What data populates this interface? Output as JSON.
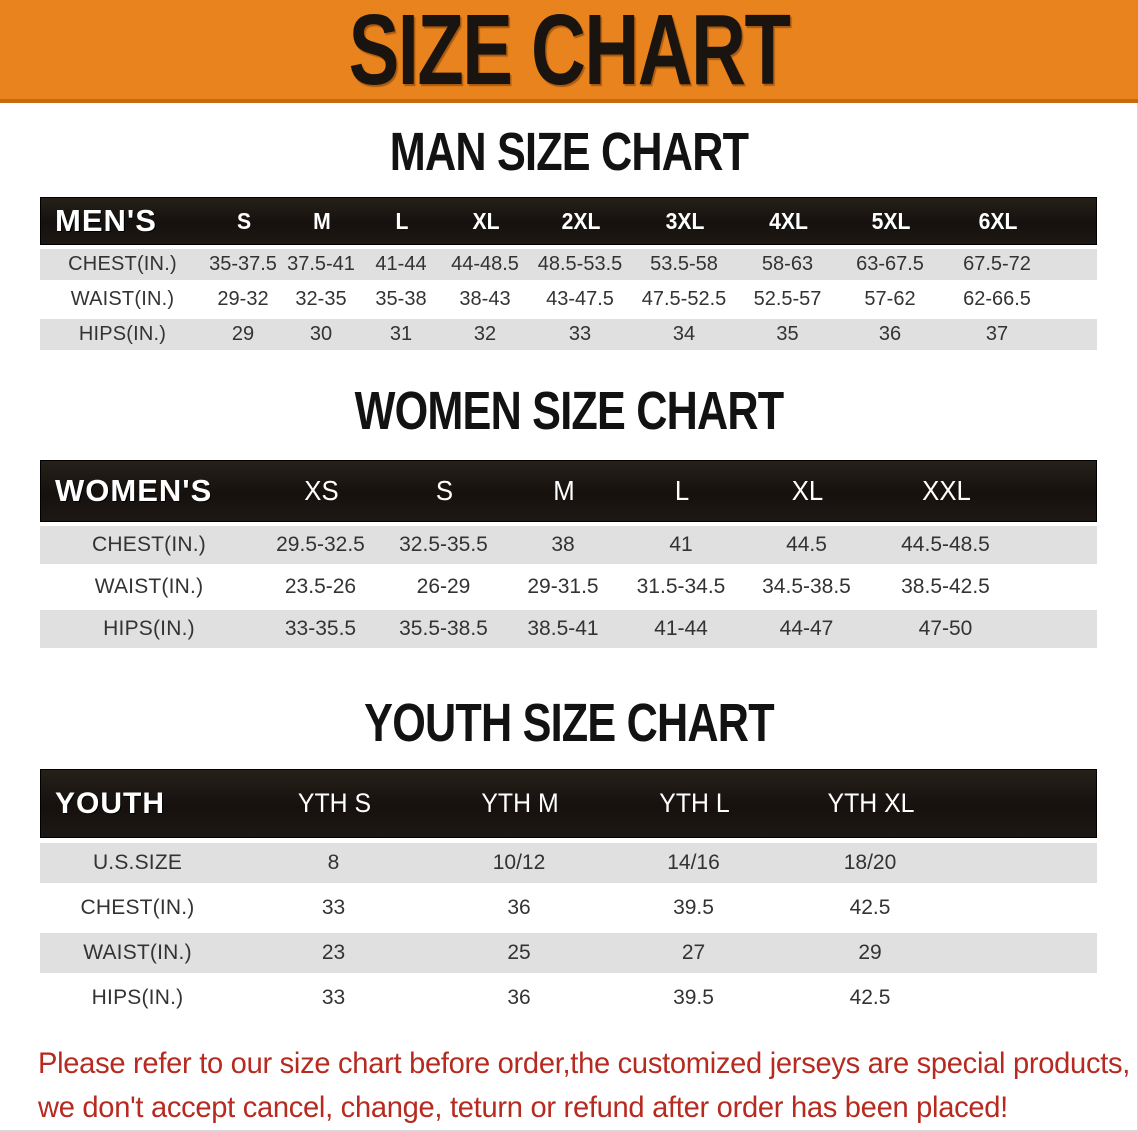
{
  "banner": {
    "title": "SIZE CHART",
    "background_color": "#E8831E",
    "edge_color": "#C9690F"
  },
  "colors": {
    "table_header_bg": "#1A1512",
    "table_header_text": "#FFFFFF",
    "row_stripe": "#DFE0DF",
    "row_text": "#333333",
    "notice_red": "#B62A20"
  },
  "sections": [
    {
      "heading": "MAN SIZE CHART",
      "table": {
        "key": "men",
        "label": "MEN'S",
        "sizes": [
          "S",
          "M",
          "L",
          "XL",
          "2XL",
          "3XL",
          "4XL",
          "5XL",
          "6XL"
        ],
        "rows": [
          {
            "label": "CHEST(IN.)",
            "values": [
              "35-37.5",
              "37.5-41",
              "41-44",
              "44-48.5",
              "48.5-53.5",
              "53.5-58",
              "58-63",
              "63-67.5",
              "67.5-72"
            ]
          },
          {
            "label": "WAIST(IN.)",
            "values": [
              "29-32",
              "32-35",
              "35-38",
              "38-43",
              "43-47.5",
              "47.5-52.5",
              "52.5-57",
              "57-62",
              "62-66.5"
            ]
          },
          {
            "label": "HIPS(IN.)",
            "values": [
              "29",
              "30",
              "31",
              "32",
              "33",
              "34",
              "35",
              "36",
              "37"
            ]
          }
        ]
      }
    },
    {
      "heading": "WOMEN SIZE CHART",
      "table": {
        "key": "women",
        "label": "WOMEN'S",
        "sizes": [
          "XS",
          "S",
          "M",
          "L",
          "XL",
          "XXL"
        ],
        "rows": [
          {
            "label": "CHEST(IN.)",
            "values": [
              "29.5-32.5",
              "32.5-35.5",
              "38",
              "41",
              "44.5",
              "44.5-48.5"
            ]
          },
          {
            "label": "WAIST(IN.)",
            "values": [
              "23.5-26",
              "26-29",
              "29-31.5",
              "31.5-34.5",
              "34.5-38.5",
              "38.5-42.5"
            ]
          },
          {
            "label": "HIPS(IN.)",
            "values": [
              "33-35.5",
              "35.5-38.5",
              "38.5-41",
              "41-44",
              "44-47",
              "47-50"
            ]
          }
        ]
      }
    },
    {
      "heading": "YOUTH SIZE CHART",
      "table": {
        "key": "youth",
        "label": "YOUTH",
        "sizes": [
          "YTH S",
          "YTH M",
          "YTH L",
          "YTH XL"
        ],
        "rows": [
          {
            "label": "U.S.SIZE",
            "values": [
              "8",
              "10/12",
              "14/16",
              "18/20"
            ]
          },
          {
            "label": "CHEST(IN.)",
            "values": [
              "33",
              "36",
              "39.5",
              "42.5"
            ]
          },
          {
            "label": "WAIST(IN.)",
            "values": [
              "23",
              "25",
              "27",
              "29"
            ]
          },
          {
            "label": "HIPS(IN.)",
            "values": [
              "33",
              "36",
              "39.5",
              "42.5"
            ]
          }
        ]
      }
    }
  ],
  "footer": {
    "line1": "Please refer to our size chart before order,the customized jerseys are special products,",
    "line2": "we don't accept cancel, change, teturn or refund after order has been placed!"
  }
}
